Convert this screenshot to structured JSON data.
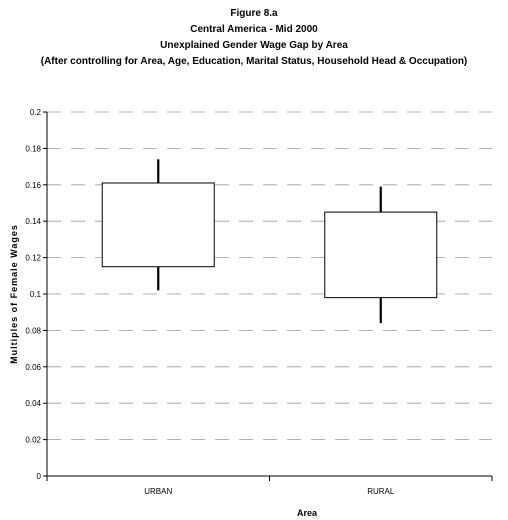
{
  "chart_data": {
    "type": "box",
    "title": "Figure 8.a",
    "subtitle_lines": [
      "Central America - Mid 2000",
      "Unexplained Gender Wage Gap by Area",
      "(After controlling for Area, Age, Education, Marital Status, Household Head & Occupation)"
    ],
    "xlabel": "Area",
    "ylabel": "Multiples of Female Wages",
    "ylim": [
      0,
      0.2
    ],
    "yticks": [
      "0",
      "0.02",
      "0.04",
      "0.06",
      "0.08",
      "0.1",
      "0.12",
      "0.14",
      "0.16",
      "0.18",
      "0.2"
    ],
    "categories": [
      "URBAN",
      "RURAL"
    ],
    "boxes": [
      {
        "category": "URBAN",
        "whisker_low": 0.102,
        "box_low": 0.115,
        "box_high": 0.161,
        "whisker_high": 0.174
      },
      {
        "category": "RURAL",
        "whisker_low": 0.084,
        "box_low": 0.098,
        "box_high": 0.145,
        "whisker_high": 0.159
      }
    ],
    "grid": true,
    "grid_style": "dashed",
    "legend": "none"
  }
}
